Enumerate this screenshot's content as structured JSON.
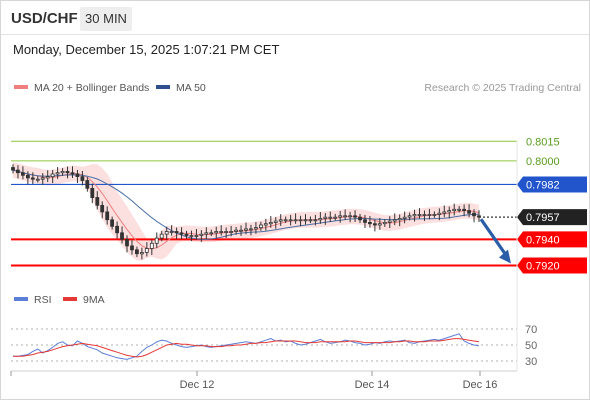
{
  "header": {
    "symbol": "USD/CHF",
    "timeframe": "30 MIN",
    "timestamp": "Monday, December 15, 2025 1:07:21 PM CET"
  },
  "legend": {
    "ma20_label": "MA 20 + Bollinger Bands",
    "ma50_label": "MA 50",
    "source": "Research © 2025 Trading Central",
    "rsi_label": "RSI",
    "rsi_ma_label": "9MA"
  },
  "colors": {
    "up_candle": "#ffffff",
    "down_candle": "#333333",
    "ma20": "#f08080",
    "bollinger_fill": "#fbd9d9",
    "ma50": "#4a6fa5",
    "resistance": "#2255cc",
    "support": "#ff0000",
    "fib_levels": "#8cc63f",
    "rsi": "#5b7fd6",
    "rsi_ma": "#e53935",
    "forecast_arrow": "#2a5ea8"
  },
  "chart_data": [
    {
      "type": "candlestick",
      "title": "USD/CHF",
      "x_ticks": [
        "Dec 12",
        "Dec 14",
        "Dec 16"
      ],
      "ylim": [
        0.7912,
        0.8042
      ],
      "overlays": [
        "MA 20 + Bollinger Bands",
        "MA 50"
      ],
      "levels": {
        "fibonacci": [
          0.8015,
          0.8
        ],
        "resistance": [
          0.7982
        ],
        "support": [
          0.794,
          0.792
        ],
        "last_price": 0.7957
      },
      "forecast": {
        "from": 0.7957,
        "to": 0.792,
        "direction": "down"
      },
      "close_series": [
        0.7993,
        0.7991,
        0.7989,
        0.7987,
        0.7986,
        0.7986,
        0.7987,
        0.7988,
        0.799,
        0.7991,
        0.7992,
        0.7991,
        0.799,
        0.7988,
        0.7985,
        0.7979,
        0.7972,
        0.7966,
        0.7961,
        0.7955,
        0.795,
        0.7945,
        0.794,
        0.7935,
        0.7932,
        0.7929,
        0.793,
        0.7933,
        0.7937,
        0.7941,
        0.7944,
        0.7946,
        0.7946,
        0.7945,
        0.7944,
        0.7943,
        0.7943,
        0.7943,
        0.7944,
        0.7945,
        0.7945,
        0.7946,
        0.7946,
        0.7946,
        0.7946,
        0.7947,
        0.7947,
        0.7948,
        0.7948,
        0.7949,
        0.7951,
        0.7952,
        0.7953,
        0.7954,
        0.7955,
        0.7955,
        0.7955,
        0.7955,
        0.7955,
        0.7955,
        0.7955,
        0.7955,
        0.7956,
        0.7957,
        0.7957,
        0.7957,
        0.7958,
        0.7958,
        0.7958,
        0.7957,
        0.7955,
        0.7953,
        0.7952,
        0.7951,
        0.7952,
        0.7953,
        0.7954,
        0.7955,
        0.7956,
        0.7957,
        0.7958,
        0.7959,
        0.7959,
        0.7959,
        0.7959,
        0.7959,
        0.796,
        0.7961,
        0.7962,
        0.7963,
        0.7963,
        0.7962,
        0.796,
        0.7958,
        0.7957
      ]
    },
    {
      "type": "line",
      "title": "RSI",
      "x_ticks": [
        "Dec 12",
        "Dec 14",
        "Dec 16"
      ],
      "y_ticks": [
        70,
        50,
        30
      ],
      "ylim": [
        20,
        80
      ],
      "series": [
        {
          "name": "RSI",
          "values": [
            36,
            36,
            37,
            38,
            42,
            45,
            40,
            43,
            47,
            52,
            54,
            50,
            49,
            55,
            52,
            48,
            46,
            44,
            40,
            38,
            36,
            34,
            33,
            32,
            34,
            36,
            42,
            47,
            50,
            54,
            56,
            55,
            52,
            50,
            48,
            47,
            48,
            49,
            50,
            48,
            47,
            48,
            49,
            50,
            51,
            52,
            53,
            54,
            53,
            52,
            54,
            56,
            58,
            55,
            56,
            54,
            55,
            52,
            50,
            51,
            53,
            55,
            57,
            54,
            52,
            53,
            54,
            56,
            55,
            53,
            52,
            50,
            51,
            53,
            52,
            54,
            55,
            54,
            55,
            56,
            53,
            52,
            54,
            55,
            56,
            57,
            56,
            58,
            60,
            62,
            64,
            55,
            52,
            50,
            49
          ]
        },
        {
          "name": "9MA",
          "values": [
            36,
            36,
            36,
            37,
            38,
            40,
            41,
            42,
            44,
            46,
            48,
            49,
            50,
            51,
            52,
            51,
            50,
            49,
            47,
            45,
            43,
            41,
            39,
            37,
            36,
            35,
            36,
            38,
            41,
            44,
            47,
            50,
            51,
            52,
            51,
            51,
            50,
            49,
            49,
            49,
            48,
            48,
            48,
            49,
            49,
            50,
            50,
            51,
            52,
            52,
            53,
            53,
            54,
            55,
            55,
            55,
            55,
            55,
            54,
            53,
            53,
            53,
            54,
            54,
            54,
            54,
            54,
            54,
            55,
            55,
            54,
            53,
            53,
            53,
            53,
            53,
            53,
            54,
            54,
            55,
            55,
            54,
            54,
            54,
            55,
            55,
            55,
            56,
            57,
            58,
            58,
            57,
            56,
            55,
            54
          ]
        }
      ]
    }
  ]
}
